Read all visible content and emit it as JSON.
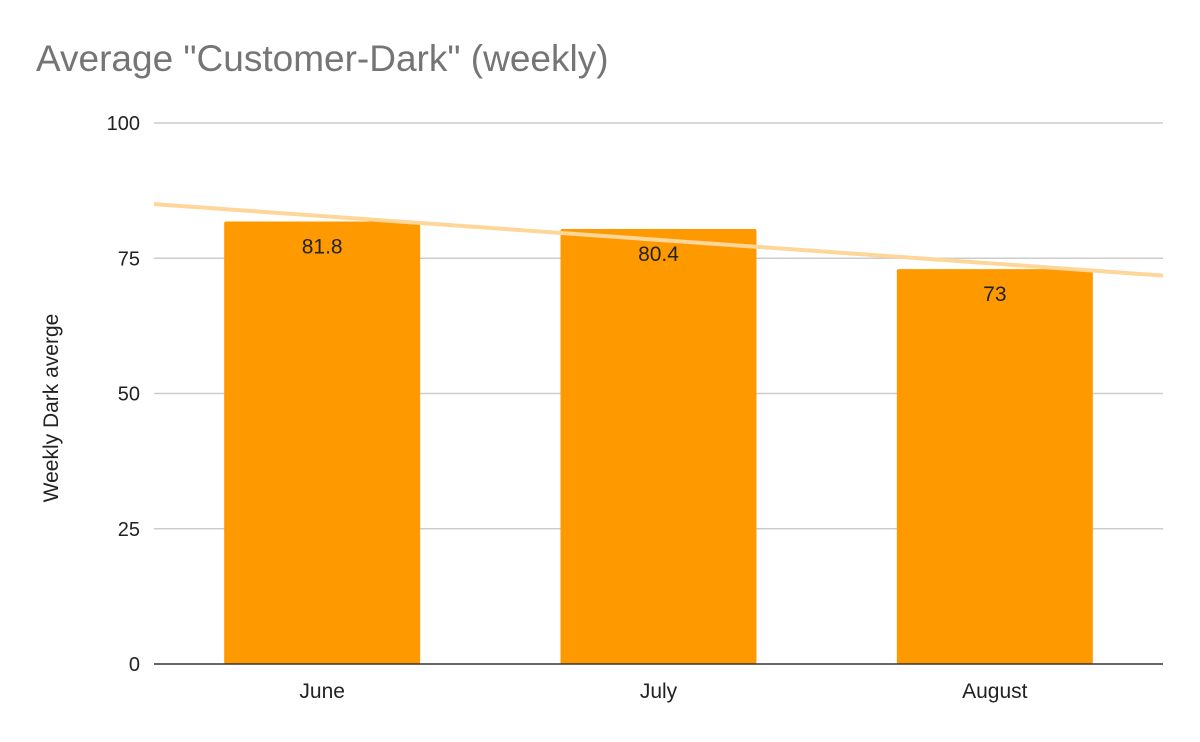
{
  "chart_data": {
    "type": "bar",
    "title": "Average \"Customer-Dark\" (weekly)",
    "xlabel": "",
    "ylabel": "Weekly Dark averge",
    "categories": [
      "June",
      "July",
      "August"
    ],
    "series": [
      {
        "values": [
          81.8,
          80.4,
          73
        ],
        "data_labels": [
          "81.8",
          "80.4",
          "73"
        ]
      }
    ],
    "ylim": [
      0,
      100
    ],
    "yticks": [
      0,
      25,
      50,
      75,
      100
    ],
    "ytick_labels": [
      "0",
      "25",
      "50",
      "75",
      "100"
    ],
    "trendline": {
      "type": "linear"
    },
    "grid": true,
    "legend": "none",
    "colors": {
      "bar": "#ff9900",
      "trendline": "#ffd699",
      "grid": "#cccccc",
      "axis": "#333333",
      "title": "#757575",
      "text": "#222222"
    }
  }
}
